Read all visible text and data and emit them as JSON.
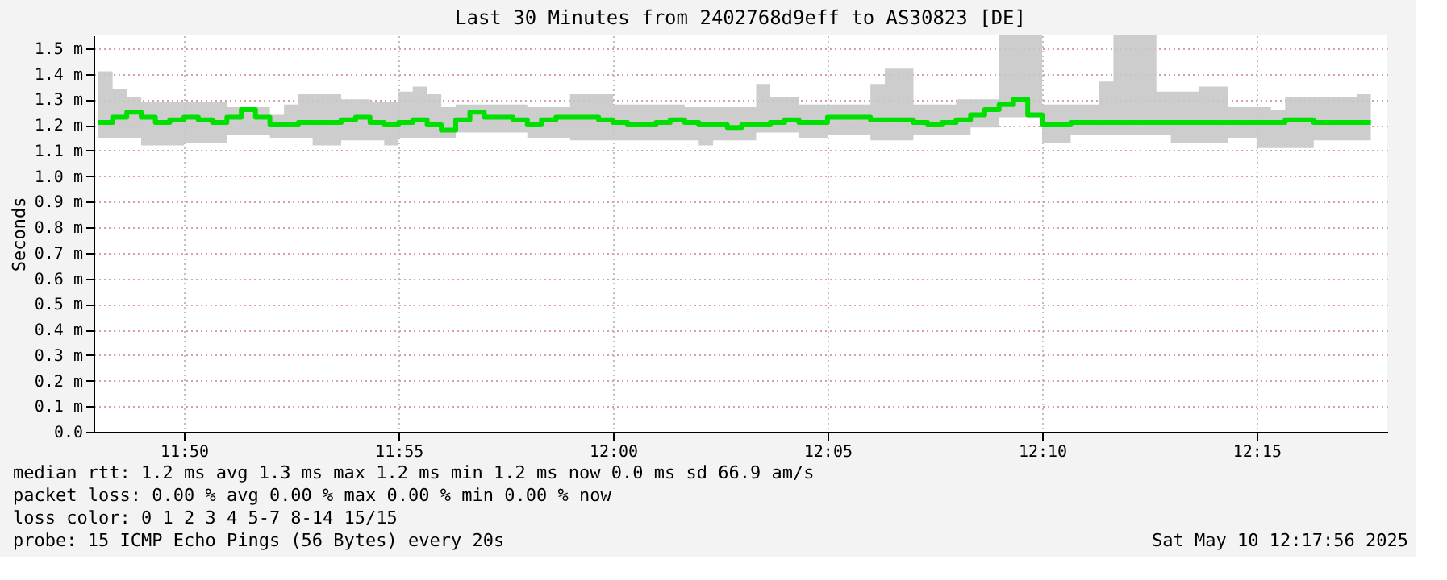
{
  "chart_data": {
    "type": "step",
    "title": "Last 30 Minutes from 2402768d9eff to AS30823 [DE]",
    "ylabel": "Seconds",
    "x": [
      11.8,
      11.8056,
      11.8111,
      11.8167,
      11.8222,
      11.8278,
      11.8333,
      11.8389,
      11.8444,
      11.85,
      11.8556,
      11.8611,
      11.8667,
      11.8722,
      11.8778,
      11.8833,
      11.8889,
      11.8944,
      11.9,
      11.9056,
      11.9111,
      11.9167,
      11.9222,
      11.9278,
      11.9333,
      11.9389,
      11.9444,
      11.95,
      11.9556,
      11.9611,
      11.9667,
      11.9722,
      11.9778,
      11.9833,
      11.9889,
      11.9944,
      12.0,
      12.0056,
      12.0111,
      12.0167,
      12.0222,
      12.0278,
      12.0333,
      12.0389,
      12.0444,
      12.05,
      12.0556,
      12.0611,
      12.0667,
      12.0722,
      12.0778,
      12.0833,
      12.0889,
      12.0944,
      12.1,
      12.1056,
      12.1111,
      12.1167,
      12.1222,
      12.1278,
      12.1333,
      12.1389,
      12.1444,
      12.15,
      12.1556,
      12.1611,
      12.1667,
      12.1722,
      12.1778,
      12.1833,
      12.1889,
      12.1944,
      12.2,
      12.2056,
      12.2111,
      12.2167,
      12.2222,
      12.2278,
      12.2333,
      12.2389,
      12.2444,
      12.25,
      12.2556,
      12.2611,
      12.2667,
      12.2722,
      12.2778,
      12.2833,
      12.2889,
      12.2944
    ],
    "series": [
      {
        "color": "#00e000",
        "values": [
          1.21,
          1.23,
          1.25,
          1.23,
          1.21,
          1.22,
          1.23,
          1.22,
          1.21,
          1.23,
          1.26,
          1.23,
          1.2,
          1.2,
          1.21,
          1.21,
          1.21,
          1.22,
          1.23,
          1.21,
          1.2,
          1.21,
          1.22,
          1.2,
          1.18,
          1.22,
          1.25,
          1.23,
          1.23,
          1.22,
          1.2,
          1.22,
          1.23,
          1.23,
          1.23,
          1.22,
          1.21,
          1.2,
          1.2,
          1.21,
          1.22,
          1.21,
          1.2,
          1.2,
          1.19,
          1.2,
          1.2,
          1.21,
          1.22,
          1.21,
          1.21,
          1.23,
          1.23,
          1.23,
          1.22,
          1.22,
          1.22,
          1.21,
          1.2,
          1.21,
          1.22,
          1.24,
          1.26,
          1.28,
          1.3,
          1.24,
          1.2,
          1.2,
          1.21,
          1.21,
          1.21,
          1.21,
          1.21,
          1.21,
          1.21,
          1.21,
          1.21,
          1.21,
          1.21,
          1.21,
          1.21,
          1.21,
          1.21,
          1.22,
          1.22,
          1.21,
          1.21,
          1.21,
          1.21,
          1.21
        ],
        "lower": [
          1.15,
          1.15,
          1.15,
          1.12,
          1.12,
          1.12,
          1.13,
          1.13,
          1.13,
          1.16,
          1.16,
          1.16,
          1.15,
          1.15,
          1.15,
          1.12,
          1.12,
          1.14,
          1.14,
          1.14,
          1.12,
          1.15,
          1.15,
          1.15,
          1.15,
          1.17,
          1.17,
          1.17,
          1.17,
          1.17,
          1.15,
          1.15,
          1.15,
          1.14,
          1.14,
          1.14,
          1.14,
          1.14,
          1.14,
          1.14,
          1.14,
          1.14,
          1.12,
          1.14,
          1.14,
          1.14,
          1.17,
          1.17,
          1.17,
          1.15,
          1.15,
          1.16,
          1.16,
          1.16,
          1.14,
          1.14,
          1.14,
          1.16,
          1.16,
          1.16,
          1.16,
          1.19,
          1.19,
          1.23,
          1.23,
          1.23,
          1.13,
          1.13,
          1.16,
          1.16,
          1.16,
          1.16,
          1.16,
          1.16,
          1.16,
          1.13,
          1.13,
          1.13,
          1.13,
          1.15,
          1.15,
          1.11,
          1.11,
          1.11,
          1.11,
          1.14,
          1.14,
          1.14,
          1.14,
          1.14
        ],
        "upper": [
          1.41,
          1.34,
          1.31,
          1.29,
          1.29,
          1.29,
          1.29,
          1.29,
          1.29,
          1.27,
          1.27,
          1.27,
          1.24,
          1.28,
          1.32,
          1.32,
          1.32,
          1.3,
          1.3,
          1.29,
          1.29,
          1.33,
          1.35,
          1.32,
          1.27,
          1.28,
          1.28,
          1.28,
          1.28,
          1.28,
          1.27,
          1.27,
          1.27,
          1.32,
          1.32,
          1.32,
          1.28,
          1.28,
          1.28,
          1.28,
          1.28,
          1.27,
          1.27,
          1.27,
          1.27,
          1.27,
          1.36,
          1.31,
          1.31,
          1.28,
          1.28,
          1.28,
          1.28,
          1.28,
          1.36,
          1.42,
          1.42,
          1.28,
          1.28,
          1.28,
          1.3,
          1.3,
          1.3,
          1.55,
          1.55,
          1.55,
          1.28,
          1.28,
          1.28,
          1.28,
          1.37,
          1.55,
          1.55,
          1.55,
          1.33,
          1.33,
          1.33,
          1.35,
          1.35,
          1.27,
          1.27,
          1.27,
          1.26,
          1.31,
          1.31,
          1.31,
          1.31,
          1.31,
          1.32,
          1.32
        ]
      }
    ],
    "xlim": [
      11.7982,
      12.3008
    ],
    "xticks": [
      {
        "value": 11.8333,
        "label": "11:50"
      },
      {
        "value": 11.9167,
        "label": "11:55"
      },
      {
        "value": 12.0,
        "label": "12:00"
      },
      {
        "value": 12.0833,
        "label": "12:05"
      },
      {
        "value": 12.1667,
        "label": "12:10"
      },
      {
        "value": 12.25,
        "label": "12:15"
      }
    ],
    "ylim": [
      0,
      1.55
    ],
    "yticks": [
      {
        "value": 0,
        "label": "0.0"
      },
      {
        "value": 0.1,
        "label": "0.1 m"
      },
      {
        "value": 0.2,
        "label": "0.2 m"
      },
      {
        "value": 0.3,
        "label": "0.3 m"
      },
      {
        "value": 0.4,
        "label": "0.4 m"
      },
      {
        "value": 0.5,
        "label": "0.5 m"
      },
      {
        "value": 0.6,
        "label": "0.6 m"
      },
      {
        "value": 0.7,
        "label": "0.7 m"
      },
      {
        "value": 0.8,
        "label": "0.8 m"
      },
      {
        "value": 0.9,
        "label": "0.9 m"
      },
      {
        "value": 1.0,
        "label": "1.0 m"
      },
      {
        "value": 1.1,
        "label": "1.1 m"
      },
      {
        "value": 1.2,
        "label": "1.2 m"
      },
      {
        "value": 1.3,
        "label": "1.3 m"
      },
      {
        "value": 1.4,
        "label": "1.4 m"
      },
      {
        "value": 1.5,
        "label": "1.5 m"
      }
    ],
    "grid": true,
    "annotations": [
      "median rtt:  1.2 ms avg  1.3 ms max  1.2 ms min  1.2 ms now  0.0 ms sd  66.9   am/s",
      "packet loss: 0.00 % avg  0.00 % max  0.00 % min  0.00 % now",
      "loss color:  0  1  2  3  4  5-7  8-14  15/15",
      "probe:       15 ICMP Echo Pings (56 Bytes) every 20s",
      "Sat May 10 12:17:56 2025"
    ]
  }
}
